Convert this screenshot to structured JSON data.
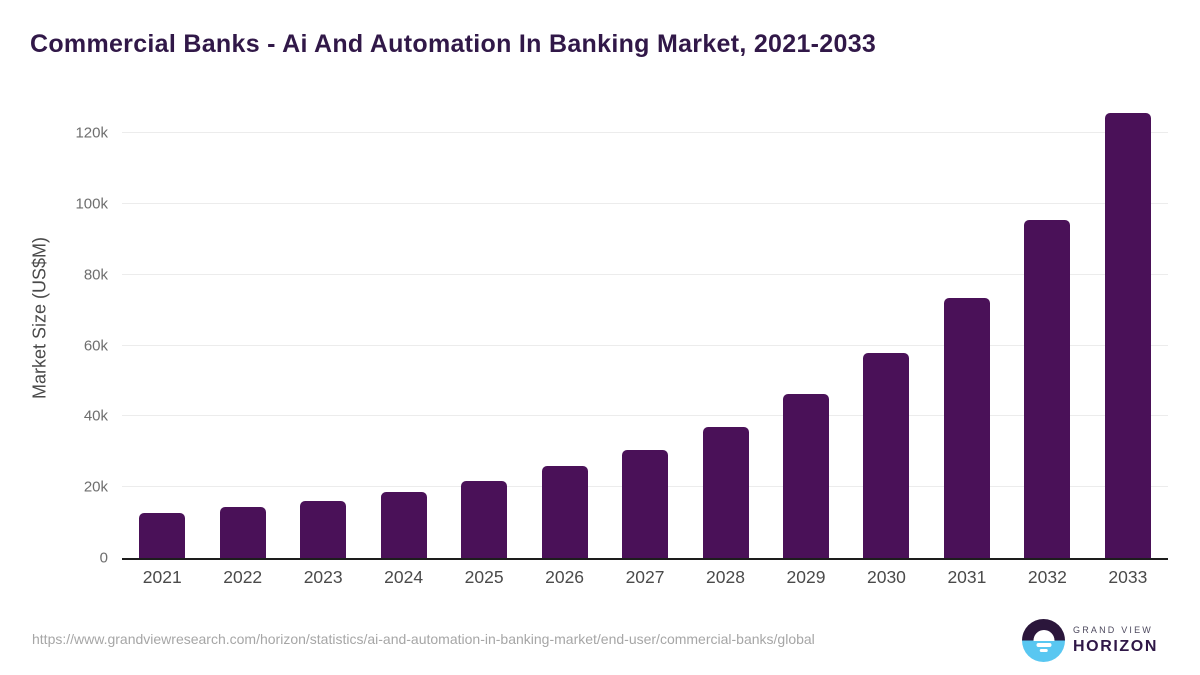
{
  "title": "Commercial Banks - Ai And Automation In Banking Market, 2021-2033",
  "chart_data": {
    "type": "bar",
    "title": "Commercial Banks - Ai And Automation In Banking Market, 2021-2033",
    "xlabel": "",
    "ylabel": "Market Size (US$M)",
    "categories": [
      "2021",
      "2022",
      "2023",
      "2024",
      "2025",
      "2026",
      "2027",
      "2028",
      "2029",
      "2030",
      "2031",
      "2032",
      "2033"
    ],
    "values": [
      12600,
      14300,
      16100,
      18700,
      21800,
      25900,
      30400,
      37100,
      46500,
      58000,
      73600,
      95500,
      125900
    ],
    "ylim": [
      0,
      130000
    ],
    "yticks": [
      {
        "value": 0,
        "label": "0"
      },
      {
        "value": 20000,
        "label": "20k"
      },
      {
        "value": 40000,
        "label": "40k"
      },
      {
        "value": 60000,
        "label": "60k"
      },
      {
        "value": 80000,
        "label": "80k"
      },
      {
        "value": 100000,
        "label": "100k"
      },
      {
        "value": 120000,
        "label": "120k"
      }
    ],
    "grid": "horizontal",
    "legend": "none"
  },
  "colors": {
    "title": "#311848",
    "bar": "#4A1158",
    "axis_line": "#1D1D1D",
    "gridline": "#ECECEC",
    "tick_label": "#6E6E6E",
    "x_label": "#4A4A4A",
    "source_url": "#A6A6A6",
    "logo_top_half": "#2B163B",
    "logo_bottom_half": "#59C7F1",
    "brand_name": "#2F1747"
  },
  "footer": {
    "source_url": "https://www.grandviewresearch.com/horizon/statistics/ai-and-automation-in-banking-market/end-user/commercial-banks/global",
    "brand_top": "GRAND VIEW",
    "brand_bottom": "HORIZON",
    "logo_icon": "horizon-sun-circle-icon"
  }
}
